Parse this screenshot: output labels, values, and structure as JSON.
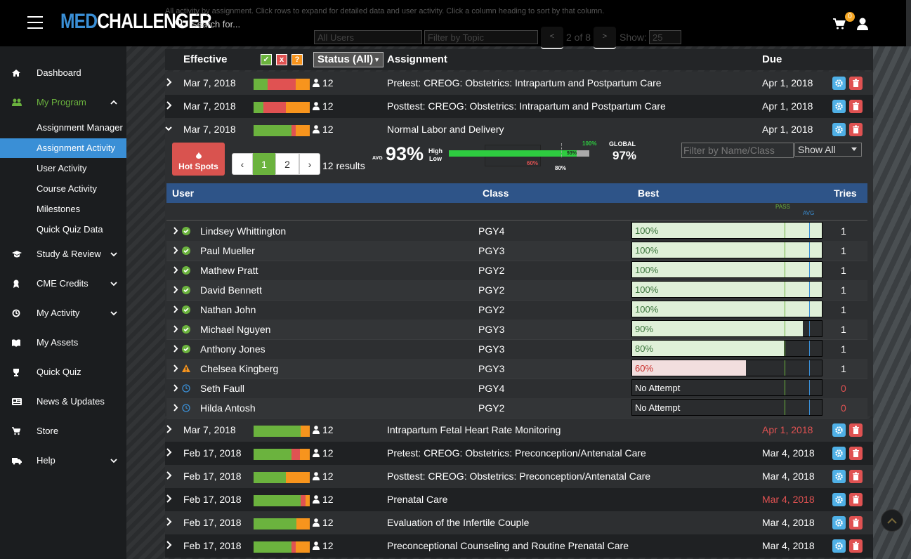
{
  "header": {
    "logo_med": "MED",
    "logo_challenger": "CHALLENGER",
    "search_placeholder": "Search for...",
    "cart_count": "0",
    "info_text": "All activity by assignment. Click rows to expand for detailed data and user activity. Click a column heading to sort by that column."
  },
  "filters": {
    "users": "All Users",
    "topic_placeholder": "Filter by Topic",
    "page_prev": "<",
    "page_info": "2 of 8",
    "page_next": ">",
    "show_label": "Show:",
    "show_value": "25"
  },
  "sidebar": {
    "items": [
      {
        "label": "Dashboard",
        "icon": "home-icon"
      },
      {
        "label": "My Program",
        "icon": "users-icon"
      },
      {
        "label": "Study & Review",
        "icon": "graduation-cap-icon"
      },
      {
        "label": "CME Credits",
        "icon": "award-icon"
      },
      {
        "label": "My Activity",
        "icon": "history-icon"
      },
      {
        "label": "My Assets",
        "icon": "book-icon"
      },
      {
        "label": "Quick Quiz",
        "icon": "trophy-icon"
      },
      {
        "label": "News & Updates",
        "icon": "newspaper-icon"
      },
      {
        "label": "Store",
        "icon": "cart-icon"
      },
      {
        "label": "Help",
        "icon": "ambulance-icon"
      }
    ],
    "subitems": [
      "Assignment Manager",
      "Assignment Activity",
      "User Activity",
      "Course Activity",
      "Milestones",
      "Quick Quiz Data"
    ]
  },
  "table": {
    "col_effective": "Effective",
    "filter_correct": "✓",
    "filter_wrong": "x",
    "filter_unknown": "?",
    "col_status": "Status (All)",
    "col_assignment": "Assignment",
    "col_due": "Due",
    "rows": [
      {
        "effective": "Mar 7, 2018",
        "count": "12",
        "assignment": "Pretest: CREOG: Obstetrics: Intrapartum and Postpartum Care",
        "due": "Apr 1, 2018",
        "due_overdue": false,
        "bar": [
          25,
          50,
          25
        ]
      },
      {
        "effective": "Mar 7, 2018",
        "count": "12",
        "assignment": "Posttest: CREOG: Obstetrics: Intrapartum and Postpartum Care",
        "due": "Apr 1, 2018",
        "due_overdue": false,
        "bar": [
          17,
          41,
          42
        ]
      },
      {
        "effective": "Mar 7, 2018",
        "count": "12",
        "assignment": "Normal Labor and Delivery",
        "due": "Apr 1, 2018",
        "due_overdue": false,
        "bar": [
          67,
          8,
          25
        ]
      },
      {
        "effective": "Mar 7, 2018",
        "count": "12",
        "assignment": "Intrapartum Fetal Heart Rate Monitoring",
        "due": "Apr 1, 2018",
        "due_overdue": true,
        "bar": [
          84,
          0,
          16
        ]
      },
      {
        "effective": "Feb 17, 2018",
        "count": "12",
        "assignment": "Pretest: CREOG: Obstetrics: Preconception/Antenatal Care",
        "due": "Mar 4, 2018",
        "due_overdue": false,
        "bar": [
          67,
          16,
          17
        ]
      },
      {
        "effective": "Feb 17, 2018",
        "count": "12",
        "assignment": "Posttest: CREOG: Obstetrics: Preconception/Antenatal Care",
        "due": "Mar 4, 2018",
        "due_overdue": false,
        "bar": [
          58,
          0,
          42
        ]
      },
      {
        "effective": "Feb 17, 2018",
        "count": "12",
        "assignment": "Prenatal Care",
        "due": "Mar 4, 2018",
        "due_overdue": true,
        "bar": [
          84,
          8,
          8
        ]
      },
      {
        "effective": "Feb 17, 2018",
        "count": "12",
        "assignment": "Evaluation of the Infertile Couple",
        "due": "Mar 4, 2018",
        "due_overdue": false,
        "bar": [
          76,
          0,
          24
        ]
      },
      {
        "effective": "Feb 17, 2018",
        "count": "12",
        "assignment": "Preconceptional Counseling and Routine Prenatal Care",
        "due": "Mar 4, 2018",
        "due_overdue": false,
        "bar": [
          67,
          8,
          25
        ]
      }
    ]
  },
  "colors": {
    "pass": "#6bb33e",
    "fail": "#e05252",
    "incomplete": "#f7941d"
  },
  "expanded": {
    "hotspots_label": "Hot Spots",
    "pager_prev": "‹",
    "pager_1": "1",
    "pager_2": "2",
    "pager_next": "›",
    "results": "12 results",
    "avg_label": "AVG",
    "avg_value": "93%",
    "high_label": "High",
    "low_label": "Low",
    "label_100": "100%",
    "label_93": "93%",
    "label_60": "60%",
    "label_80": "80%",
    "global_label": "GLOBAL",
    "global_value": "97%",
    "filter_placeholder": "Filter by Name/Class",
    "show_all": "Show All",
    "col_user": "User",
    "col_class": "Class",
    "col_best": "Best",
    "col_tries": "Tries",
    "pass_label": "PASS",
    "avg_col_label": "AVG",
    "users": [
      {
        "name": "Lindsey Whittington",
        "class": "PGY4",
        "best": "100%",
        "best_pct": 100,
        "tries": "1",
        "status": "pass"
      },
      {
        "name": "Paul Mueller",
        "class": "PGY3",
        "best": "100%",
        "best_pct": 100,
        "tries": "1",
        "status": "pass"
      },
      {
        "name": "Mathew Pratt",
        "class": "PGY2",
        "best": "100%",
        "best_pct": 100,
        "tries": "1",
        "status": "pass"
      },
      {
        "name": "David Bennett",
        "class": "PGY2",
        "best": "100%",
        "best_pct": 100,
        "tries": "1",
        "status": "pass"
      },
      {
        "name": "Nathan John",
        "class": "PGY2",
        "best": "100%",
        "best_pct": 100,
        "tries": "1",
        "status": "pass"
      },
      {
        "name": "Michael Nguyen",
        "class": "PGY3",
        "best": "90%",
        "best_pct": 90,
        "tries": "1",
        "status": "pass"
      },
      {
        "name": "Anthony Jones",
        "class": "PGY3",
        "best": "80%",
        "best_pct": 80,
        "tries": "1",
        "status": "pass"
      },
      {
        "name": "Chelsea Kingberg",
        "class": "PGY3",
        "best": "60%",
        "best_pct": 60,
        "tries": "1",
        "status": "warning"
      },
      {
        "name": "Seth Faull",
        "class": "PGY4",
        "best": "No Attempt",
        "best_pct": 0,
        "tries": "0",
        "status": "pending"
      },
      {
        "name": "Hilda Antosh",
        "class": "PGY2",
        "best": "No Attempt",
        "best_pct": 0,
        "tries": "0",
        "status": "pending"
      }
    ]
  }
}
